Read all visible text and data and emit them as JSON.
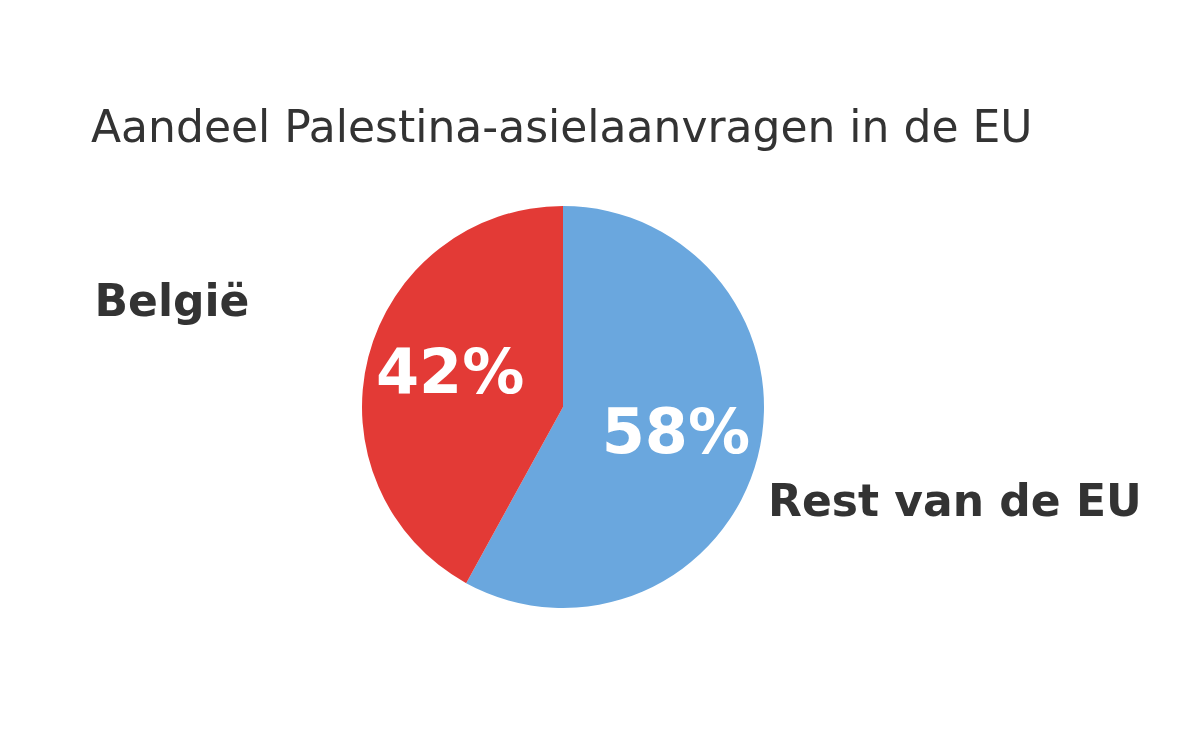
{
  "chart_data": {
    "type": "pie",
    "title": "Aandeel Palestina-asielaanvragen in de EU",
    "categories": [
      "Rest van de EU",
      "België"
    ],
    "values": [
      58,
      42
    ],
    "colors": [
      "#6aa7de",
      "#e33a36"
    ],
    "value_labels": [
      "58%",
      "42%"
    ],
    "legend": false
  }
}
